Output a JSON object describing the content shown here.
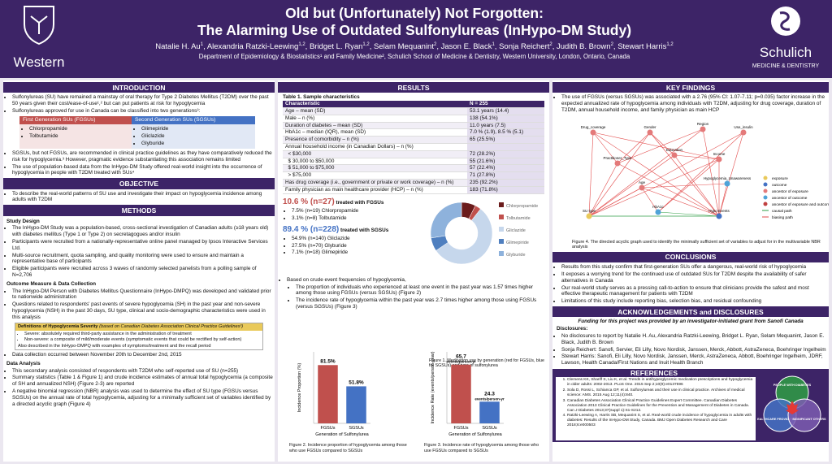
{
  "header": {
    "left_logo": "Western",
    "right_logo": "Schulich",
    "right_logo_sub": "MEDICINE & DENTISTRY",
    "title_line1": "Old but (Unfortunately) Not Forgotten:",
    "title_line2": "The Alarming Use of Outdated Sulfonylureas (InHypo-DM Study)",
    "authors": [
      {
        "name": "Natalie H. Au",
        "aff": "1"
      },
      {
        "name": "Alexandria Ratzki-Leewing",
        "aff": "1,2"
      },
      {
        "name": "Bridget L. Ryan",
        "aff": "1,2"
      },
      {
        "name": "Selam Mequanint",
        "aff": "2"
      },
      {
        "name": "Jason E. Black",
        "aff": "1"
      },
      {
        "name": "Sonja Reichert",
        "aff": "2"
      },
      {
        "name": "Judith B. Brown",
        "aff": "2"
      },
      {
        "name": "Stewart Harris",
        "aff": "1,2"
      }
    ],
    "affiliation": "Department of Epidemiology & Biostatistics¹ and Family Medicine², Schulich School of Medicine & Dentistry, Western University, London, Ontario, Canada"
  },
  "introduction": {
    "heading": "INTRODUCTION",
    "bullets1": [
      "Sulfonylureas (SU) have remained a mainstay of oral therapy for Type 2 Diabetes Mellitus (T2DM) over the past 50 years given their cost/ease-of-use¹,² but can put patients at risk for hypoglycemia",
      "Sulfonylureas approved for use in Canada can be classified into two generations³:"
    ],
    "table": {
      "headers": [
        "First Generation SUs (FGSUs)",
        "Second Generation SUs (SGSUs)"
      ],
      "col1": [
        "Chlorpropamide",
        "Tolbutamide"
      ],
      "col2": [
        "Glimepiride",
        "Gliclazide",
        "Glyburide"
      ]
    },
    "bullets2": [
      "SGSUs, but not FGSUs, are recommended in clinical practice guidelines as they have comparatively reduced the risk for hypoglycemia.³ However, pragmatic evidence substantiating this association remains limited",
      "The use of population-based data from the InHypo-DM Study offered real-world insight into the occurrence of hypoglycemia in people with T2DM treated with SUs⁴"
    ]
  },
  "objective": {
    "heading": "OBJECTIVE",
    "text": "To describe the real-world patterns of SU use and investigate their impact on hypoglycemia incidence among adults with T2DM"
  },
  "methods": {
    "heading": "METHODS",
    "study_design": {
      "heading": "Study Design",
      "bullets": [
        "The InHypo-DM Study was a population-based, cross-sectional investigation of Canadian adults (≥18 years old) with diabetes mellitus (Type 1 or Type 2) on secretagogues and/or insulin",
        "Participants were recruited from a nationally-representative online panel managed by Ipsos Interactive Services Ltd.",
        "Multi-source recruitment, quota sampling, and quality monitoring were used to ensure and maintain a representative base of participants",
        "Eligible participants were recruited across 3 waves of randomly selected panelists from a polling sample of N=2,706"
      ]
    },
    "outcome": {
      "heading": "Outcome Measure & Data Collection",
      "bullets": [
        "The InHypo-DM Person with Diabetes Mellitus Questionnaire (InHypo-DMPQ) was developed and validated prior to nationwide administration",
        "Questions related to respondents' past events of severe hypoglycemia (SH) in the past year and non-severe hypoglycemia (NSH) in the past 30 days, SU type, clinical and socio-demographic characteristics were used in this analysis"
      ],
      "box": {
        "title": "Definitions of Hypoglycemia Severity",
        "note": "(based on Canadian Diabetes Association Clinical Practice Guidelines³)",
        "items": [
          "Severe: absolutely required third-party assistance in the administration of treatment",
          "Non-severe: a composite of mild/moderate events (symptomatic events that could be rectified by self-action)"
        ],
        "footer": "Also described in the InHypo-DMPQ with examples of symptoms/treatment and the recall period"
      },
      "bullets_after": [
        "Data collection occurred between November 20th to December 2nd, 2015"
      ]
    },
    "data_analysis": {
      "heading": "Data Analysis",
      "bullets": [
        "This secondary analysis consisted of respondents with T2DM who self-reported use of SU (n=255)",
        "Summary statistics (Table 1 & Figure 1) and crude incidence estimates of annual total hypoglycemia (a composite of SH and annualized NSH) (Figure 2-3) are reported",
        "A negative binomial regression (NBR) analysis was used to determine the effect of SU type (FGSUs versus SGSUs) on the annual rate of total hypoglycemia, adjusting for a minimally sufficient set of variables identified by a directed acyclic graph (Figure 4)"
      ]
    }
  },
  "results": {
    "heading": "RESULTS",
    "table": {
      "caption": "Table 1. Sample characteristics",
      "header": [
        "Characteristic",
        "N = 255"
      ],
      "rows": [
        [
          "Age – mean (SD)",
          "53.1 years (14.4)"
        ],
        [
          "Male – n (%)",
          "138 (54.1%)"
        ],
        [
          "Duration of diabetes – mean (SD)",
          "11.0 years (7.5)"
        ],
        [
          "HbA1c – median (IQR), mean (SD)",
          "7.0 % (1.9), 8.5 % (5.1)"
        ],
        [
          "Presence of comorbidity – n (%)",
          "65 (25.5%)"
        ],
        [
          "Annual household income (in Canadian Dollars) – n (%)",
          ""
        ],
        [
          "  < $30,000",
          "72 (28.2%)"
        ],
        [
          "  $ 30,000 to $50,000",
          "55 (21.6%)"
        ],
        [
          "  $ 51,000 to $75,000",
          "57 (22.4%)"
        ],
        [
          "  > $75,000",
          "71 (27.8%)"
        ],
        [
          "Has drug coverage (i.e., government or private or work coverage) – n (%)",
          "235 (92.2%)"
        ],
        [
          "Family physician as main healthcare provider (HCP) – n (%)",
          "183 (71.8%)"
        ]
      ]
    },
    "fgsu": {
      "pct": "10.6 % (n=27)",
      "label": "treated with FGSUs",
      "items": [
        "7.5% (n=19) Chlorpropamide",
        "3.1% (n=8) Tolbutamide"
      ]
    },
    "sgsu": {
      "pct": "89.4 % (n=228)",
      "label": "treated with SGSUs",
      "items": [
        "54.9% (n=140) Gliclazide",
        "27.5% (n=70) Glyburide",
        "7.1% (n=18) Glimepiride"
      ]
    },
    "donut": {
      "type": "pie",
      "categories": [
        "Chlorpropamide",
        "Tolbutamide",
        "Gliclazide",
        "Glimepiride",
        "Glyburide"
      ],
      "values": [
        19,
        8,
        140,
        18,
        70
      ],
      "colors": [
        "#6b1c1c",
        "#c0504d",
        "#c6d7ec",
        "#4f7fbf",
        "#8eb2dc"
      ],
      "caption": "Figure 1. Medication use by generation (red for FGSUs, blue for SGSUs) and type of sulfonylurea"
    },
    "text": {
      "intro": "Based on crude event frequencies of hypoglycemia,",
      "sub": [
        "The proportion of individuals who experienced at least one event in the past year was 1.57 times higher among those using FGSUs (versus SGSUs) (Figure 2)",
        "The incidence rate of hypoglycemia within the past year was 2.7 times higher among those using FGSUs (versus SGSUs) (Figure 3)"
      ]
    },
    "fig2": {
      "type": "bar",
      "y_label": "Incidence Proportion (%)",
      "x_label": "Generation of Sulfonylurea",
      "categories": [
        "FGSUs",
        "SGSUs"
      ],
      "values": [
        81.5,
        51.8
      ],
      "value_labels": [
        "81.5%",
        "51.8%"
      ],
      "colors": [
        "#c0504d",
        "#4472c4"
      ],
      "ylim": [
        0,
        100
      ],
      "caption": "Figure 2. Incidence proportion of hypoglycemia among those who use FGSUs compared to SGSUs"
    },
    "fig3": {
      "type": "bar",
      "y_label": "Incidence Rate (events/person-year)",
      "x_label": "Generation of Sulfonylurea",
      "categories": [
        "FGSUs",
        "SGSUs"
      ],
      "values": [
        65.7,
        24.3
      ],
      "value_labels": [
        "65.7",
        "24.3"
      ],
      "unit": "events/person-yr",
      "colors": [
        "#c0504d",
        "#4472c4"
      ],
      "ylim": [
        0,
        80
      ],
      "caption": "Figure 3. Incidence rate of hypoglycemia among those who use FGSUs compared to SGSUs"
    }
  },
  "key_findings": {
    "heading": "KEY FINDINGS",
    "bullets": [
      "The use of FGSUs (versus SGSUs) was associated with a 2.76 (95% CI: 1.07-7.11; p=0.035) factor increase in the expected annualized rate of hypoglycemia among individuals with T2DM, adjusting for drug coverage, duration of T2DM, annual household income, and family physician as main HCP"
    ],
    "dag": {
      "nodes": [
        "Drug_coverage",
        "Gender",
        "Region",
        "Use_insulin",
        "Practitioner_Type",
        "Education",
        "Income",
        "Age",
        "Hypoglycemia_Unawareness",
        "SU type",
        "HbA1c",
        "Hypo Events"
      ],
      "legend": [
        "exposure",
        "outcome",
        "ancestor of exposure",
        "ancestor of outcome",
        "ancestor of exposure and outcome",
        "causal path",
        "biasing path"
      ]
    },
    "caption": "Figure 4. The directed acyclic graph used to identify the minimally sufficient set of variables to adjust for in the multivariable NBR analysis"
  },
  "conclusions": {
    "heading": "CONCLUSIONS",
    "bullets": [
      "Results from this study confirm that first-generation SUs offer a dangerous, real-world risk of hypoglycemia",
      "It exposes a worrying trend for the continued use of outdated SUs for T2DM despite the availability of safer alternatives in Canada",
      "Our real-world study serves as a pressing call-to-action to ensure that clinicians provide the safest and most effective therapeutic management for patients with T2DM",
      "Limitations of this study include reporting bias, selection bias, and residual confounding"
    ]
  },
  "acknowledgements": {
    "heading": "ACKNOWLEDGEMENTS and DISCLOSURES",
    "funding": "Funding for this project was provided by an investigator-initiated grant from Sanofi Canada",
    "disclosures_heading": "Disclosures:",
    "bullets": [
      "No disclosures to report by Natalie H. Au, Alexandria Ratzki-Leewing, Bridget L. Ryan, Selam Mequanint, Jason E. Black, Judith B. Brown",
      "Sonja Reichert: Sanofi, Servier, Eli Lilly, Novo Nordisk, Janssen, Merck, Abbott, AstraZeneca, Boehringer Ingelheim",
      "Stewart Harris: Sanofi, Eli Lilly, Novo Nordisk, Janssen, Merck, AstraZeneca, Abbott, Boehringer Ingelheim, JDRF, Lawson, Health Canada/First Nations and Inuit Health Branch"
    ]
  },
  "references": {
    "heading": "REFERENCES",
    "items": [
      "Clemens KK, Shariff S, Liu K, et al. Trends in antihyperglycemic medication prescriptions and hypoglycemia in older adults: 2002-2013. PLoS One. 2015 Sep 2;10(9):e0137596",
      "Sola D, Rossi L, Schianca GP, et al. Sulfonylureas and their use in clinical practice. Archives of medical science: AMS. 2015 Aug 12;11(4):840.",
      "Canadian Diabetes Association Clinical Practice Guidelines Expert Committee. Canadian Diabetes Association 2013 Clinical Practice Guidelines for the Prevention and Management of Diabetes in Canada. Can J Diabetes 2013;37(suppl 1):S1-S212.",
      "Ratzki-Leewing A, Harris SB, Mequanint S, et al. Real-world crude incidence of hypoglycemia in adults with diabetes: Results of the InHypo-DM Study, Canada. BMJ Open Diabetes Research and Care 2018;6:e000503"
    ],
    "logo": [
      "PEOPLE WITH DIABETES",
      "HEALTHCARE PROVIDERS",
      "SIGNIFICANT OTHERS"
    ]
  }
}
